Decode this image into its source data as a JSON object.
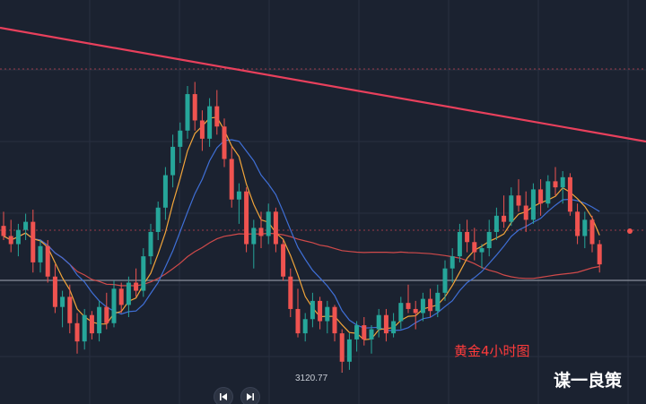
{
  "title": "黄金4小时图",
  "watermark": "谋一良策",
  "low_label": "3120.77",
  "icons": {
    "prev": "skip-previous-icon",
    "next": "skip-next-icon"
  },
  "colors": {
    "background": "#1b2230",
    "up": "#26a69a",
    "down": "#ef5350",
    "trendline": "#e8405c",
    "ma_fast": "#f2a53a",
    "ma_mid": "#3f6fd6",
    "ma_slow": "#d04a4a",
    "grid": "#283040",
    "support": "#8a909c",
    "dotted": "#9a3a48",
    "title": "#ff3b3b",
    "watermark": "#ffffff"
  },
  "chart_data": {
    "type": "candlestick",
    "series_labels_shown": [
      "3120.77"
    ],
    "low": 3120.77,
    "ohlc": [
      [
        3193,
        3200,
        3186,
        3188
      ],
      [
        3188,
        3196,
        3180,
        3184
      ],
      [
        3184,
        3194,
        3178,
        3191
      ],
      [
        3191,
        3199,
        3186,
        3195
      ],
      [
        3195,
        3201,
        3170,
        3175
      ],
      [
        3175,
        3186,
        3170,
        3183
      ],
      [
        3183,
        3186,
        3165,
        3168
      ],
      [
        3168,
        3174,
        3150,
        3153
      ],
      [
        3153,
        3161,
        3143,
        3158
      ],
      [
        3158,
        3164,
        3140,
        3145
      ],
      [
        3145,
        3150,
        3130,
        3136
      ],
      [
        3136,
        3152,
        3132,
        3149
      ],
      [
        3149,
        3151,
        3137,
        3140
      ],
      [
        3140,
        3156,
        3136,
        3153
      ],
      [
        3153,
        3160,
        3142,
        3145
      ],
      [
        3145,
        3166,
        3143,
        3162
      ],
      [
        3162,
        3165,
        3150,
        3154
      ],
      [
        3154,
        3168,
        3148,
        3165
      ],
      [
        3165,
        3172,
        3158,
        3161
      ],
      [
        3161,
        3182,
        3158,
        3178
      ],
      [
        3178,
        3194,
        3174,
        3190
      ],
      [
        3190,
        3205,
        3186,
        3202
      ],
      [
        3202,
        3222,
        3196,
        3218
      ],
      [
        3218,
        3238,
        3212,
        3232
      ],
      [
        3232,
        3244,
        3224,
        3240
      ],
      [
        3240,
        3262,
        3236,
        3258
      ],
      [
        3258,
        3264,
        3240,
        3245
      ],
      [
        3245,
        3250,
        3230,
        3236
      ],
      [
        3236,
        3256,
        3232,
        3252
      ],
      [
        3252,
        3260,
        3238,
        3242
      ],
      [
        3242,
        3246,
        3222,
        3226
      ],
      [
        3226,
        3232,
        3202,
        3206
      ],
      [
        3206,
        3214,
        3194,
        3210
      ],
      [
        3210,
        3212,
        3180,
        3184
      ],
      [
        3184,
        3196,
        3172,
        3192
      ],
      [
        3192,
        3200,
        3182,
        3188
      ],
      [
        3188,
        3204,
        3184,
        3200
      ],
      [
        3200,
        3202,
        3180,
        3184
      ],
      [
        3184,
        3186,
        3166,
        3168
      ],
      [
        3168,
        3172,
        3148,
        3152
      ],
      [
        3152,
        3162,
        3138,
        3140
      ],
      [
        3140,
        3150,
        3136,
        3147
      ],
      [
        3147,
        3160,
        3143,
        3156
      ],
      [
        3156,
        3158,
        3142,
        3146
      ],
      [
        3146,
        3156,
        3140,
        3153
      ],
      [
        3153,
        3154,
        3136,
        3140
      ],
      [
        3140,
        3142,
        3120.77,
        3126
      ],
      [
        3126,
        3140,
        3122,
        3137
      ],
      [
        3137,
        3146,
        3131,
        3144
      ],
      [
        3144,
        3148,
        3134,
        3137
      ],
      [
        3137,
        3144,
        3130,
        3142
      ],
      [
        3142,
        3152,
        3138,
        3149
      ],
      [
        3149,
        3152,
        3136,
        3140
      ],
      [
        3140,
        3150,
        3138,
        3146
      ],
      [
        3146,
        3158,
        3142,
        3155
      ],
      [
        3155,
        3164,
        3150,
        3152
      ],
      [
        3152,
        3156,
        3142,
        3150
      ],
      [
        3150,
        3160,
        3146,
        3157
      ],
      [
        3157,
        3162,
        3148,
        3151
      ],
      [
        3151,
        3164,
        3148,
        3160
      ],
      [
        3160,
        3176,
        3156,
        3172
      ],
      [
        3172,
        3182,
        3165,
        3178
      ],
      [
        3178,
        3194,
        3175,
        3190
      ],
      [
        3190,
        3196,
        3180,
        3185
      ],
      [
        3185,
        3192,
        3176,
        3180
      ],
      [
        3180,
        3184,
        3172,
        3182
      ],
      [
        3182,
        3196,
        3178,
        3190
      ],
      [
        3190,
        3202,
        3186,
        3198
      ],
      [
        3198,
        3208,
        3192,
        3195
      ],
      [
        3195,
        3212,
        3193,
        3208
      ],
      [
        3208,
        3216,
        3200,
        3203
      ],
      [
        3203,
        3210,
        3190,
        3196
      ],
      [
        3196,
        3214,
        3194,
        3211
      ],
      [
        3211,
        3216,
        3198,
        3204
      ],
      [
        3204,
        3218,
        3202,
        3215
      ],
      [
        3215,
        3222,
        3208,
        3212
      ],
      [
        3212,
        3220,
        3204,
        3217
      ],
      [
        3217,
        3219,
        3198,
        3200
      ],
      [
        3200,
        3204,
        3184,
        3188
      ],
      [
        3188,
        3200,
        3182,
        3196
      ],
      [
        3196,
        3198,
        3180,
        3184
      ],
      [
        3184,
        3186,
        3170,
        3174
      ]
    ]
  }
}
